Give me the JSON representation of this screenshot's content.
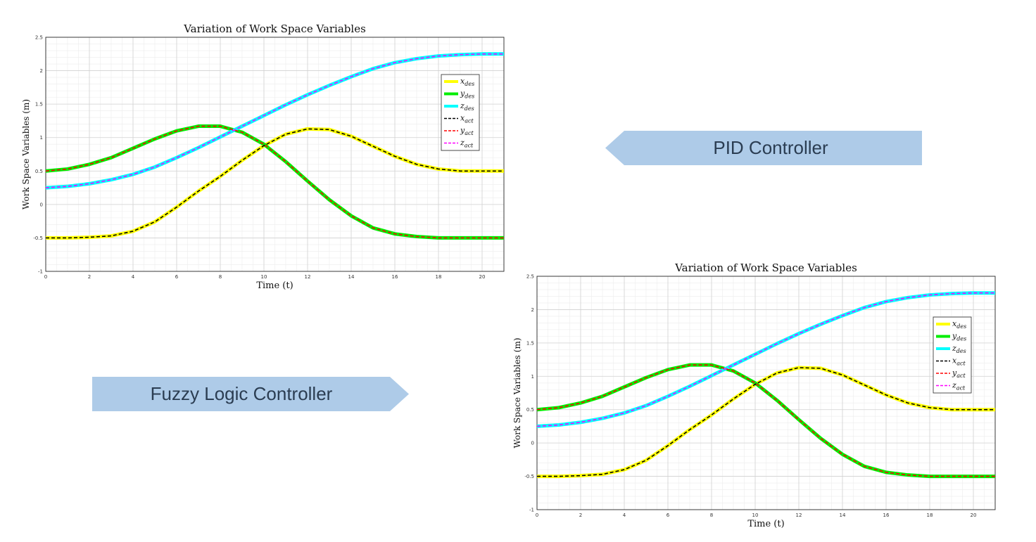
{
  "labels": {
    "pid": "PID Controller",
    "fuzzy": "Fuzzy Logic Controller"
  },
  "chart_data": [
    {
      "type": "line",
      "title": "Variation of Work Space Variables",
      "xlabel": "Time (t)",
      "ylabel": "Work Space Variables (m)",
      "xlim": [
        0,
        21
      ],
      "ylim": [
        -1,
        2.5
      ],
      "xticks": [
        0,
        2,
        4,
        6,
        8,
        10,
        12,
        14,
        16,
        18,
        20
      ],
      "yticks": [
        -1,
        -0.5,
        0,
        0.5,
        1,
        1.5,
        2,
        2.5
      ],
      "grid": true,
      "legend_position": "right",
      "x": [
        0,
        1,
        2,
        3,
        4,
        5,
        6,
        7,
        8,
        9,
        10,
        11,
        12,
        13,
        14,
        15,
        16,
        17,
        18,
        19,
        20,
        21
      ],
      "series": [
        {
          "name": "x_des",
          "color": "#ffff00",
          "style": "solid",
          "values": [
            -0.5,
            -0.5,
            -0.49,
            -0.47,
            -0.4,
            -0.26,
            -0.04,
            0.2,
            0.42,
            0.66,
            0.88,
            1.05,
            1.13,
            1.12,
            1.02,
            0.87,
            0.72,
            0.6,
            0.53,
            0.5,
            0.5,
            0.5
          ]
        },
        {
          "name": "y_des",
          "color": "#00ee00",
          "style": "solid",
          "values": [
            0.5,
            0.53,
            0.6,
            0.7,
            0.84,
            0.98,
            1.1,
            1.17,
            1.17,
            1.08,
            0.9,
            0.64,
            0.35,
            0.07,
            -0.17,
            -0.35,
            -0.44,
            -0.48,
            -0.5,
            -0.5,
            -0.5,
            -0.5
          ]
        },
        {
          "name": "z_des",
          "color": "#00ffff",
          "style": "solid",
          "values": [
            0.25,
            0.27,
            0.31,
            0.37,
            0.45,
            0.56,
            0.7,
            0.85,
            1.01,
            1.17,
            1.33,
            1.49,
            1.64,
            1.78,
            1.91,
            2.03,
            2.12,
            2.18,
            2.22,
            2.24,
            2.25,
            2.25
          ]
        },
        {
          "name": "x_act",
          "color": "#000000",
          "style": "dashed",
          "values": [
            -0.5,
            -0.5,
            -0.49,
            -0.47,
            -0.4,
            -0.26,
            -0.04,
            0.2,
            0.42,
            0.66,
            0.88,
            1.05,
            1.13,
            1.12,
            1.02,
            0.87,
            0.72,
            0.6,
            0.53,
            0.5,
            0.5,
            0.5
          ]
        },
        {
          "name": "y_act",
          "color": "#ff0000",
          "style": "dashed",
          "values": [
            0.5,
            0.53,
            0.6,
            0.7,
            0.84,
            0.98,
            1.1,
            1.17,
            1.17,
            1.08,
            0.9,
            0.64,
            0.35,
            0.07,
            -0.17,
            -0.35,
            -0.44,
            -0.48,
            -0.5,
            -0.5,
            -0.5,
            -0.5
          ]
        },
        {
          "name": "z_act",
          "color": "#ff00ff",
          "style": "dashed",
          "values": [
            0.25,
            0.27,
            0.31,
            0.37,
            0.45,
            0.56,
            0.7,
            0.85,
            1.01,
            1.17,
            1.33,
            1.49,
            1.64,
            1.78,
            1.91,
            2.03,
            2.12,
            2.18,
            2.22,
            2.24,
            2.25,
            2.25
          ]
        }
      ],
      "legend_labels": [
        {
          "base": "x",
          "sub": "des"
        },
        {
          "base": "y",
          "sub": "des"
        },
        {
          "base": "z",
          "sub": "des"
        },
        {
          "base": "x",
          "sub": "act"
        },
        {
          "base": "y",
          "sub": "act"
        },
        {
          "base": "z",
          "sub": "act"
        }
      ]
    },
    {
      "type": "line",
      "title": "Variation of Work Space Variables",
      "xlabel": "Time (t)",
      "ylabel": "Work Space Variables (m)",
      "xlim": [
        0,
        21
      ],
      "ylim": [
        -1,
        2.5
      ],
      "xticks": [
        0,
        2,
        4,
        6,
        8,
        10,
        12,
        14,
        16,
        18,
        20
      ],
      "yticks": [
        -1,
        -0.5,
        0,
        0.5,
        1,
        1.5,
        2,
        2.5
      ],
      "grid": true,
      "legend_position": "right",
      "x": [
        0,
        1,
        2,
        3,
        4,
        5,
        6,
        7,
        8,
        9,
        10,
        11,
        12,
        13,
        14,
        15,
        16,
        17,
        18,
        19,
        20,
        21
      ],
      "series": [
        {
          "name": "x_des",
          "color": "#ffff00",
          "style": "solid",
          "values": [
            -0.5,
            -0.5,
            -0.49,
            -0.47,
            -0.4,
            -0.26,
            -0.04,
            0.2,
            0.42,
            0.66,
            0.88,
            1.05,
            1.13,
            1.12,
            1.02,
            0.87,
            0.72,
            0.6,
            0.53,
            0.5,
            0.5,
            0.5
          ]
        },
        {
          "name": "y_des",
          "color": "#00ee00",
          "style": "solid",
          "values": [
            0.5,
            0.53,
            0.6,
            0.7,
            0.84,
            0.98,
            1.1,
            1.17,
            1.17,
            1.08,
            0.9,
            0.64,
            0.35,
            0.07,
            -0.17,
            -0.35,
            -0.44,
            -0.48,
            -0.5,
            -0.5,
            -0.5,
            -0.5
          ]
        },
        {
          "name": "z_des",
          "color": "#00ffff",
          "style": "solid",
          "values": [
            0.25,
            0.27,
            0.31,
            0.37,
            0.45,
            0.56,
            0.7,
            0.85,
            1.01,
            1.17,
            1.33,
            1.49,
            1.64,
            1.78,
            1.91,
            2.03,
            2.12,
            2.18,
            2.22,
            2.24,
            2.25,
            2.25
          ]
        },
        {
          "name": "x_act",
          "color": "#000000",
          "style": "dashed",
          "values": [
            -0.5,
            -0.5,
            -0.49,
            -0.47,
            -0.4,
            -0.26,
            -0.04,
            0.2,
            0.42,
            0.66,
            0.88,
            1.05,
            1.13,
            1.12,
            1.02,
            0.87,
            0.72,
            0.6,
            0.53,
            0.5,
            0.5,
            0.5
          ]
        },
        {
          "name": "y_act",
          "color": "#ff0000",
          "style": "dashed",
          "values": [
            0.5,
            0.53,
            0.6,
            0.7,
            0.84,
            0.98,
            1.1,
            1.17,
            1.17,
            1.08,
            0.9,
            0.64,
            0.35,
            0.07,
            -0.17,
            -0.35,
            -0.44,
            -0.48,
            -0.5,
            -0.5,
            -0.5,
            -0.5
          ]
        },
        {
          "name": "z_act",
          "color": "#ff00ff",
          "style": "dashed",
          "values": [
            0.25,
            0.27,
            0.31,
            0.37,
            0.45,
            0.56,
            0.7,
            0.85,
            1.01,
            1.17,
            1.33,
            1.49,
            1.64,
            1.78,
            1.91,
            2.03,
            2.12,
            2.18,
            2.22,
            2.24,
            2.25,
            2.25
          ]
        }
      ],
      "legend_labels": [
        {
          "base": "x",
          "sub": "des"
        },
        {
          "base": "y",
          "sub": "des"
        },
        {
          "base": "z",
          "sub": "des"
        },
        {
          "base": "x",
          "sub": "act"
        },
        {
          "base": "y",
          "sub": "act"
        },
        {
          "base": "z",
          "sub": "act"
        }
      ]
    }
  ]
}
